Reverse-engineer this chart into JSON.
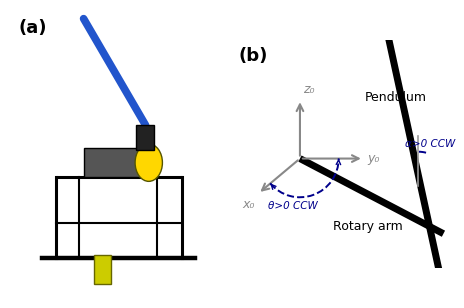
{
  "panel_a_label": "(a)",
  "panel_b_label": "(b)",
  "bg_color": "#ffffff",
  "axis_color": "#888888",
  "pendulum_color": "#000000",
  "rotary_arm_color": "#000000",
  "angle_color": "#00008B",
  "label_color": "#000000",
  "z0_label": "z₀",
  "y0_label": "y₀",
  "x0_label": "x₀",
  "theta_label": "θ>0 CCW",
  "alpha_label": "α>0 CCW",
  "pendulum_label": "Pendulum",
  "rotary_arm_label": "Rotary arm",
  "panel_label_fontsize": 13,
  "axis_label_fontsize": 9,
  "diagram_label_fontsize": 9,
  "photo_bg": "#f5f5f5"
}
